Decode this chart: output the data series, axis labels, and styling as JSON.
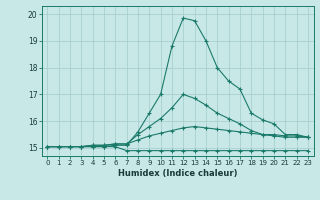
{
  "xlabel": "Humidex (Indice chaleur)",
  "background_color": "#c8e8e8",
  "grid_color": "#aacfcf",
  "line_color": "#1a7a6a",
  "xlim": [
    -0.5,
    23.5
  ],
  "ylim": [
    14.7,
    20.3
  ],
  "xticks": [
    0,
    1,
    2,
    3,
    4,
    5,
    6,
    7,
    8,
    9,
    10,
    11,
    12,
    13,
    14,
    15,
    16,
    17,
    18,
    19,
    20,
    21,
    22,
    23
  ],
  "yticks": [
    15,
    16,
    17,
    18,
    19,
    20
  ],
  "series": [
    [
      15.05,
      15.05,
      15.05,
      15.05,
      15.05,
      15.05,
      15.1,
      15.1,
      15.6,
      16.3,
      17.0,
      18.8,
      19.85,
      19.75,
      19.0,
      18.0,
      17.5,
      17.2,
      16.3,
      16.05,
      15.9,
      15.5,
      15.5,
      15.4
    ],
    [
      15.05,
      15.05,
      15.05,
      15.05,
      15.05,
      15.05,
      15.05,
      14.9,
      14.9,
      14.9,
      14.9,
      14.9,
      14.9,
      14.9,
      14.9,
      14.9,
      14.9,
      14.9,
      14.9,
      14.9,
      14.9,
      14.9,
      14.9,
      14.9
    ],
    [
      15.05,
      15.05,
      15.05,
      15.05,
      15.1,
      15.1,
      15.15,
      15.15,
      15.3,
      15.45,
      15.55,
      15.65,
      15.75,
      15.8,
      15.75,
      15.7,
      15.65,
      15.6,
      15.55,
      15.5,
      15.5,
      15.45,
      15.45,
      15.4
    ],
    [
      15.05,
      15.05,
      15.05,
      15.05,
      15.1,
      15.1,
      15.15,
      15.15,
      15.5,
      15.8,
      16.1,
      16.5,
      17.0,
      16.85,
      16.6,
      16.3,
      16.1,
      15.9,
      15.65,
      15.5,
      15.45,
      15.4,
      15.4,
      15.4
    ]
  ]
}
